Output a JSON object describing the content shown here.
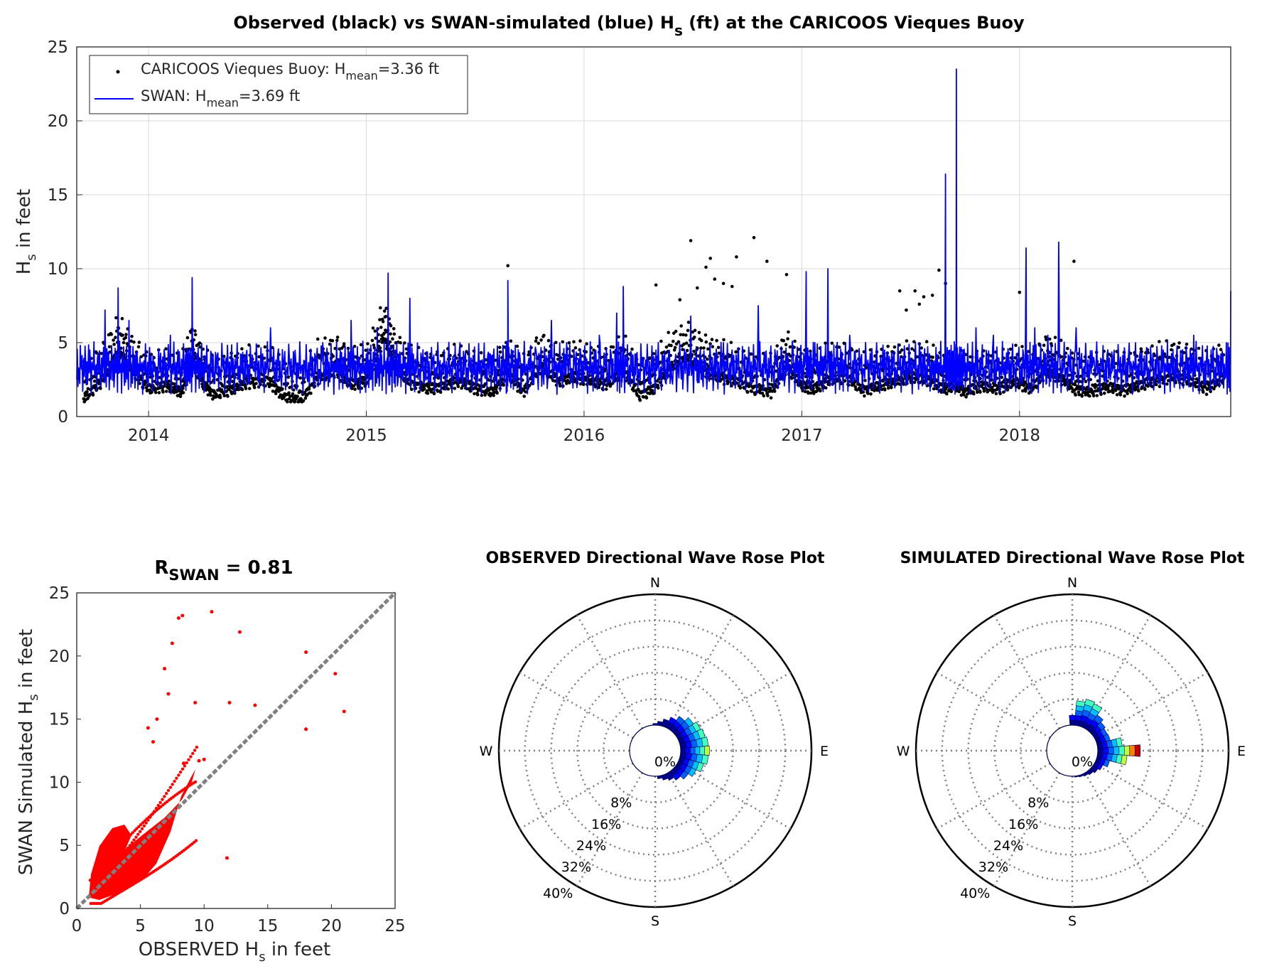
{
  "colors": {
    "observed": "#000000",
    "swan": "#0000ff",
    "scatter": "#ff0000",
    "identity": "#808080",
    "grid": "#d9d9d9",
    "rose_grid": "#808080"
  },
  "chart_data": [
    {
      "id": "timeseries",
      "type": "line",
      "title_prefix": "Observed (black) vs SWAN-simulated (blue) H",
      "title_sub": "s",
      "title_suffix": " (ft) at the CARICOOS Vieques Buoy",
      "ylabel": "H",
      "ylabel_sub": "s",
      "ylabel_suffix": " in feet",
      "ylim": [
        0,
        25
      ],
      "yticks": [
        0,
        5,
        10,
        15,
        20,
        25
      ],
      "xlim": [
        2013.67,
        2018.97
      ],
      "xticks": [
        {
          "value": 2014,
          "label": "2014"
        },
        {
          "value": 2015,
          "label": "2015"
        },
        {
          "value": 2016,
          "label": "2016"
        },
        {
          "value": 2017,
          "label": "2017"
        },
        {
          "value": 2018,
          "label": "2018"
        }
      ],
      "grid": true,
      "legend_position": "top-left",
      "legend": [
        {
          "name": "CARICOOS Vieques Buoy: H",
          "sub": "mean",
          "suffix": "=3.36 ft",
          "marker": "dot"
        },
        {
          "name": "SWAN: H",
          "sub": "mean",
          "suffix": "=3.69 ft",
          "marker": "line"
        }
      ],
      "series": [
        {
          "name": "Observed (buoy)",
          "style": "dots",
          "x": [
            2013.7,
            2013.78,
            2013.86,
            2013.92,
            2014.0,
            2014.08,
            2014.15,
            2014.2,
            2014.25,
            2014.3,
            2014.38,
            2014.45,
            2014.55,
            2014.62,
            2014.7,
            2014.78,
            2014.86,
            2014.93,
            2015.0,
            2015.08,
            2015.13,
            2015.2,
            2015.28,
            2015.35,
            2015.42,
            2015.5,
            2015.58,
            2015.65,
            2015.72,
            2015.8,
            2015.88,
            2015.95,
            2016.02,
            2016.1,
            2016.18,
            2016.25,
            2016.32,
            2016.4,
            2016.48,
            2016.55,
            2016.62,
            2016.7,
            2016.78,
            2016.86,
            2016.93,
            2017.0,
            2017.06,
            2017.12,
            2017.2,
            2017.28,
            2017.35,
            2017.42,
            2017.5,
            2017.58,
            2017.65,
            2017.7,
            2017.75,
            2017.82,
            2017.9,
            2017.98,
            2018.05,
            2018.12,
            2018.18,
            2018.25,
            2018.32,
            2018.4,
            2018.48,
            2018.55,
            2018.62,
            2018.7,
            2018.78,
            2018.86,
            2018.94
          ],
          "y": [
            2.3,
            3.5,
            5.5,
            4.3,
            3.0,
            3.2,
            2.8,
            5.0,
            3.3,
            2.6,
            3.0,
            3.4,
            3.5,
            2.5,
            2.2,
            3.8,
            4.2,
            3.3,
            3.5,
            6.5,
            4.5,
            3.4,
            3.0,
            3.2,
            3.5,
            3.0,
            2.8,
            4.0,
            2.8,
            4.5,
            3.5,
            3.8,
            3.6,
            3.3,
            4.2,
            2.6,
            3.0,
            4.5,
            5.0,
            4.2,
            3.8,
            3.5,
            3.0,
            2.8,
            4.5,
            3.2,
            3.0,
            3.6,
            3.8,
            2.9,
            3.2,
            3.5,
            3.8,
            3.6,
            3.0,
            3.3,
            2.8,
            3.2,
            3.0,
            3.5,
            3.0,
            4.2,
            3.8,
            3.0,
            2.8,
            3.1,
            2.9,
            3.3,
            3.5,
            3.8,
            3.6,
            3.0,
            3.8
          ],
          "outliers_x": [
            2015.65,
            2016.33,
            2016.49,
            2016.56,
            2016.58,
            2016.6,
            2016.64,
            2016.68,
            2016.7,
            2016.78,
            2016.84,
            2016.93,
            2017.45,
            2017.52,
            2017.56,
            2017.63,
            2017.66,
            2018.0,
            2018.25,
            2016.44,
            2016.52,
            2017.48,
            2017.54,
            2017.6
          ],
          "outliers_y": [
            10.2,
            8.9,
            11.9,
            10.1,
            10.7,
            9.3,
            9.0,
            8.8,
            10.8,
            12.1,
            10.5,
            9.6,
            8.5,
            8.5,
            8.1,
            9.9,
            9.0,
            8.4,
            10.5,
            7.9,
            8.7,
            7.2,
            7.6,
            8.2
          ]
        },
        {
          "name": "SWAN simulated",
          "style": "line",
          "x": [
            2013.67,
            2013.73,
            2013.8,
            2013.86,
            2013.91,
            2013.96,
            2014.03,
            2014.1,
            2014.17,
            2014.2,
            2014.26,
            2014.34,
            2014.41,
            2014.48,
            2014.56,
            2014.64,
            2014.72,
            2014.8,
            2014.87,
            2014.93,
            2015.0,
            2015.05,
            2015.1,
            2015.14,
            2015.2,
            2015.27,
            2015.35,
            2015.43,
            2015.5,
            2015.57,
            2015.64,
            2015.65,
            2015.7,
            2015.78,
            2015.85,
            2015.92,
            2016.0,
            2016.07,
            2016.15,
            2016.18,
            2016.25,
            2016.33,
            2016.41,
            2016.49,
            2016.56,
            2016.64,
            2016.72,
            2016.8,
            2016.88,
            2016.96,
            2017.02,
            2017.06,
            2017.12,
            2017.16,
            2017.22,
            2017.3,
            2017.38,
            2017.46,
            2017.54,
            2017.6,
            2017.66,
            2017.69,
            2017.71,
            2017.74,
            2017.8,
            2017.88,
            2017.95,
            2018.03,
            2018.07,
            2018.13,
            2018.18,
            2018.26,
            2018.34,
            2018.42,
            2018.5,
            2018.58,
            2018.66,
            2018.73,
            2018.8,
            2018.88,
            2018.95,
            2018.97
          ],
          "y": [
            2.5,
            4.5,
            7.2,
            8.7,
            6.5,
            4.0,
            3.5,
            5.5,
            4.2,
            9.4,
            3.0,
            3.5,
            2.5,
            3.2,
            6.0,
            2.8,
            2.6,
            5.0,
            3.8,
            6.5,
            4.2,
            6.0,
            9.7,
            5.0,
            8.0,
            4.0,
            3.6,
            5.0,
            2.8,
            4.2,
            3.4,
            9.2,
            3.5,
            4.4,
            6.5,
            5.0,
            3.6,
            5.5,
            7.0,
            8.8,
            3.2,
            4.5,
            3.3,
            6.8,
            3.5,
            5.0,
            3.0,
            7.5,
            4.0,
            4.5,
            9.8,
            5.0,
            10.0,
            4.5,
            5.5,
            3.5,
            4.5,
            3.0,
            5.0,
            3.6,
            16.4,
            4.0,
            23.5,
            4.5,
            6.0,
            5.5,
            4.0,
            11.4,
            6.0,
            5.5,
            11.8,
            6.0,
            4.0,
            3.0,
            4.0,
            3.5,
            4.5,
            3.0,
            5.5,
            4.5,
            5.0,
            8.5
          ]
        }
      ]
    },
    {
      "id": "scatter",
      "type": "scatter",
      "title_prefix": "R",
      "title_sub": "SWAN",
      "title_suffix": " = 0.81",
      "xlabel": "OBSERVED H",
      "xlabel_sub": "s",
      "xlabel_suffix": " in feet",
      "ylabel": "SWAN Simulated H",
      "ylabel_sub": "s",
      "ylabel_suffix": " in feet",
      "xlim": [
        0,
        25
      ],
      "ylim": [
        0,
        25
      ],
      "xticks": [
        0,
        5,
        10,
        15,
        20,
        25
      ],
      "yticks": [
        0,
        5,
        10,
        15,
        20,
        25
      ],
      "correlation": 0.81,
      "identity_line": true,
      "points_x": [
        8.0,
        8.3,
        10.6,
        12.8,
        7.5,
        6.9,
        7.2,
        9.3,
        12.0,
        14.0,
        18.0,
        20.3,
        21.0,
        18.0,
        11.8,
        6.3,
        5.6,
        6.0,
        10.0,
        9.6,
        8.4
      ],
      "points_y": [
        23.0,
        23.2,
        23.5,
        21.9,
        21.0,
        19.0,
        17.0,
        16.3,
        16.3,
        16.1,
        20.3,
        18.6,
        15.6,
        14.2,
        4.0,
        15.0,
        14.3,
        13.2,
        11.8,
        11.7,
        11.5
      ]
    },
    {
      "id": "rose_observed",
      "type": "rose",
      "title": "OBSERVED Directional Wave Rose Plot",
      "directions": [
        "N",
        "E",
        "S",
        "W"
      ],
      "ring_labels": [
        "8%",
        "16%",
        "24%",
        "32%",
        "40%"
      ],
      "center_label": "0%",
      "rmax": 40,
      "bins_deg": [
        0,
        10,
        20,
        30,
        40,
        50,
        60,
        70,
        80,
        90,
        100,
        110,
        120,
        130,
        140,
        150,
        160,
        170
      ],
      "bins_pct": [
        0.5,
        1.2,
        2.2,
        3.5,
        5.0,
        6.5,
        7.5,
        8.0,
        8.5,
        8.8,
        8.5,
        7.5,
        6.0,
        4.5,
        3.2,
        2.2,
        1.5,
        0.8
      ]
    },
    {
      "id": "rose_simulated",
      "type": "rose",
      "title": "SIMULATED Directional Wave Rose Plot",
      "directions": [
        "N",
        "E",
        "S",
        "W"
      ],
      "ring_labels": [
        "8%",
        "16%",
        "24%",
        "32%",
        "40%"
      ],
      "center_label": "0%",
      "rmax": 40,
      "bins_deg": [
        0,
        10,
        20,
        30,
        40,
        50,
        60,
        70,
        80,
        90,
        100,
        110,
        120,
        130,
        140,
        150,
        160,
        170
      ],
      "bins_pct": [
        3.0,
        7.5,
        8.5,
        8.0,
        5.5,
        4.5,
        4.0,
        4.2,
        7.5,
        13.0,
        9.0,
        4.0,
        2.5,
        1.8,
        1.2,
        0.8,
        0.5,
        0.3
      ]
    }
  ]
}
